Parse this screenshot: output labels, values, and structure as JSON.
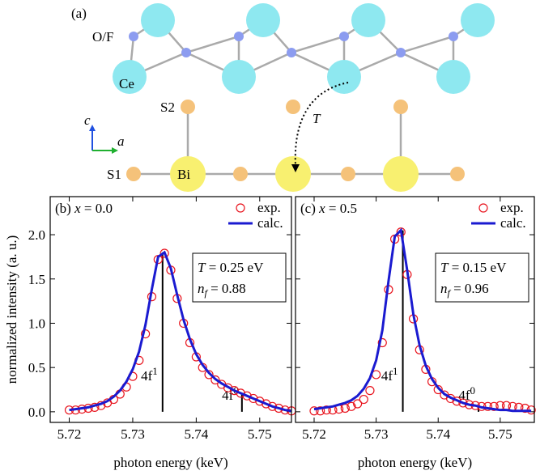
{
  "diagram": {
    "panel_label": "(a)",
    "labels": {
      "of": "O/F",
      "ce": "Ce",
      "s2": "S2",
      "s1": "S1",
      "bi": "Bi",
      "t": "T",
      "c": "c",
      "a": "a"
    }
  },
  "chart_data": [
    {
      "type": "line",
      "panel_label": "(b)",
      "variable": "x",
      "variable_value": "= 0.0",
      "xlabel": "photon energy (keV)",
      "ylabel": "normalized intensity (a. u.)",
      "xlim": [
        5.717,
        5.755
      ],
      "ylim": [
        -0.12,
        2.43
      ],
      "xticks": [
        5.72,
        5.73,
        5.74,
        5.75
      ],
      "yticks": [
        {
          "value": 0,
          "label": "0.0"
        },
        0.5,
        {
          "value": 1,
          "label": "1.0"
        },
        1.5,
        {
          "value": 2,
          "label": "2.0"
        }
      ],
      "x": [
        5.72,
        5.721,
        5.722,
        5.723,
        5.724,
        5.725,
        5.726,
        5.727,
        5.728,
        5.729,
        5.73,
        5.731,
        5.732,
        5.733,
        5.734,
        5.735,
        5.736,
        5.737,
        5.738,
        5.739,
        5.74,
        5.741,
        5.742,
        5.743,
        5.744,
        5.745,
        5.746,
        5.747,
        5.748,
        5.749,
        5.75,
        5.751,
        5.752,
        5.753,
        5.754,
        5.755
      ],
      "series": [
        {
          "name": "exp.",
          "color": "#e8141e",
          "marker": "circle",
          "values": [
            0.02,
            0.02,
            0.03,
            0.04,
            0.05,
            0.07,
            0.1,
            0.14,
            0.2,
            0.28,
            0.4,
            0.58,
            0.88,
            1.3,
            1.72,
            1.79,
            1.6,
            1.28,
            1.0,
            0.78,
            0.62,
            0.5,
            0.42,
            0.36,
            0.31,
            0.27,
            0.24,
            0.21,
            0.18,
            0.15,
            0.12,
            0.09,
            0.06,
            0.04,
            0.02,
            0.01
          ]
        },
        {
          "name": "calc.",
          "color": "#1a1ad0",
          "marker": "line",
          "values": [
            0.02,
            0.03,
            0.04,
            0.05,
            0.07,
            0.09,
            0.12,
            0.17,
            0.24,
            0.34,
            0.48,
            0.68,
            0.98,
            1.38,
            1.75,
            1.8,
            1.62,
            1.32,
            1.04,
            0.82,
            0.65,
            0.53,
            0.44,
            0.37,
            0.32,
            0.28,
            0.24,
            0.21,
            0.18,
            0.15,
            0.12,
            0.09,
            0.06,
            0.04,
            0.02,
            0.01
          ]
        }
      ],
      "sticks": [
        {
          "x": 5.7347,
          "height": 1.8,
          "label": "4f",
          "superscript": "1"
        },
        {
          "x": 5.7472,
          "height": 0.2,
          "label": "4f",
          "superscript": "0"
        }
      ],
      "param_box": [
        {
          "symbol": "T",
          "text": " = 0.25 eV"
        },
        {
          "symbol": "n",
          "subscript": "f",
          "text": " = 0.88"
        }
      ]
    },
    {
      "type": "line",
      "panel_label": "(c)",
      "variable": "x",
      "variable_value": "= 0.5",
      "xlabel": "photon energy (keV)",
      "ytick_labels": false,
      "xlim": [
        5.717,
        5.7555
      ],
      "ylim": [
        -0.12,
        2.43
      ],
      "xticks": [
        5.72,
        5.73,
        5.74,
        5.75
      ],
      "yticks": [
        0,
        0.5,
        1,
        1.5,
        2
      ],
      "x": [
        5.72,
        5.721,
        5.722,
        5.723,
        5.724,
        5.725,
        5.726,
        5.727,
        5.728,
        5.729,
        5.73,
        5.731,
        5.732,
        5.733,
        5.734,
        5.735,
        5.736,
        5.737,
        5.738,
        5.739,
        5.74,
        5.741,
        5.742,
        5.743,
        5.744,
        5.745,
        5.746,
        5.747,
        5.748,
        5.749,
        5.75,
        5.751,
        5.752,
        5.753,
        5.754,
        5.755
      ],
      "series": [
        {
          "name": "exp.",
          "color": "#e8141e",
          "marker": "circle",
          "values": [
            0.01,
            0.01,
            0.02,
            0.02,
            0.03,
            0.04,
            0.06,
            0.09,
            0.14,
            0.24,
            0.42,
            0.78,
            1.38,
            1.95,
            2.03,
            1.55,
            1.05,
            0.7,
            0.48,
            0.34,
            0.25,
            0.19,
            0.15,
            0.12,
            0.1,
            0.08,
            0.07,
            0.06,
            0.06,
            0.06,
            0.07,
            0.07,
            0.06,
            0.05,
            0.04,
            0.02
          ]
        },
        {
          "name": "calc.",
          "color": "#1a1ad0",
          "marker": "line",
          "values": [
            0.03,
            0.04,
            0.05,
            0.06,
            0.08,
            0.1,
            0.13,
            0.18,
            0.26,
            0.38,
            0.58,
            0.92,
            1.48,
            1.98,
            2.05,
            1.6,
            1.1,
            0.75,
            0.52,
            0.37,
            0.27,
            0.2,
            0.16,
            0.13,
            0.1,
            0.08,
            0.07,
            0.05,
            0.04,
            0.03,
            0.02,
            0.02,
            0.01,
            0.01,
            0.01,
            0.01
          ]
        }
      ],
      "sticks": [
        {
          "x": 5.7343,
          "height": 2.05,
          "label": "4f",
          "superscript": "1"
        },
        {
          "x": 5.7465,
          "height": 0.05,
          "label": "4f",
          "superscript": "0"
        }
      ],
      "param_box": [
        {
          "symbol": "T",
          "text": " = 0.15 eV"
        },
        {
          "symbol": "n",
          "subscript": "f",
          "text": " = 0.96"
        }
      ]
    }
  ]
}
